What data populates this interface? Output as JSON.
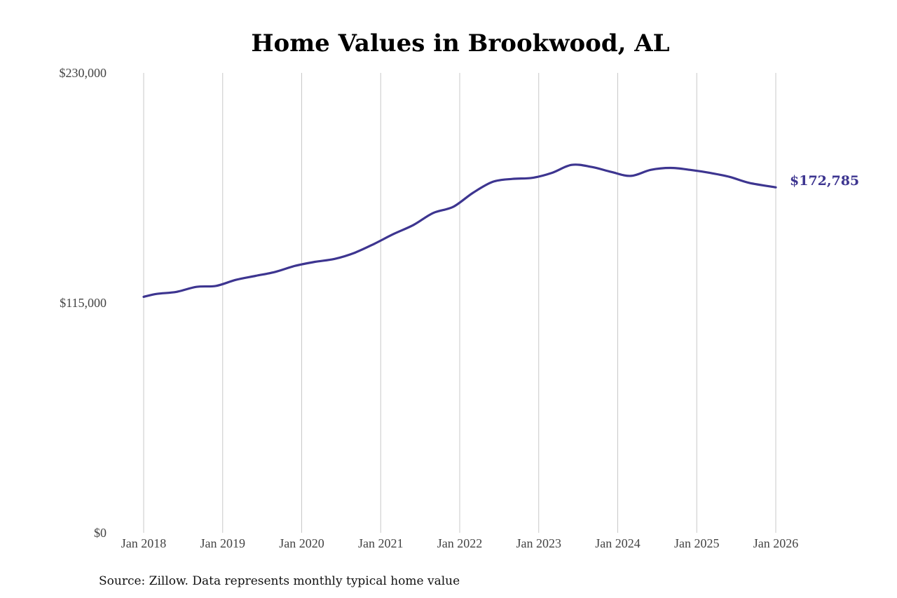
{
  "chart_data": {
    "type": "line",
    "title": "Home Values in Brookwood, AL",
    "source": "Source: Zillow. Data represents monthly typical home value",
    "ylim": [
      0,
      230000
    ],
    "y_ticks": [
      {
        "value": 0,
        "label": "$0"
      },
      {
        "value": 115000,
        "label": "$115,000"
      },
      {
        "value": 230000,
        "label": "$230,000"
      }
    ],
    "x_ticks": [
      {
        "value": "2018-01",
        "label": "Jan 2018"
      },
      {
        "value": "2019-01",
        "label": "Jan 2019"
      },
      {
        "value": "2020-01",
        "label": "Jan 2020"
      },
      {
        "value": "2021-01",
        "label": "Jan 2021"
      },
      {
        "value": "2022-01",
        "label": "Jan 2022"
      },
      {
        "value": "2023-01",
        "label": "Jan 2023"
      },
      {
        "value": "2024-01",
        "label": "Jan 2024"
      },
      {
        "value": "2025-01",
        "label": "Jan 2025"
      },
      {
        "value": "2026-01",
        "label": "Jan 2026"
      }
    ],
    "grid": "vertical",
    "line_color": "#3d3590",
    "end_label": "$172,785",
    "series": [
      {
        "points": [
          {
            "x": "2018-01",
            "y": 118000
          },
          {
            "x": "2018-03",
            "y": 119500
          },
          {
            "x": "2018-06",
            "y": 120500
          },
          {
            "x": "2018-09",
            "y": 123000
          },
          {
            "x": "2018-12",
            "y": 123500
          },
          {
            "x": "2019-03",
            "y": 126500
          },
          {
            "x": "2019-06",
            "y": 128500
          },
          {
            "x": "2019-09",
            "y": 130500
          },
          {
            "x": "2019-12",
            "y": 133500
          },
          {
            "x": "2020-03",
            "y": 135500
          },
          {
            "x": "2020-06",
            "y": 137000
          },
          {
            "x": "2020-09",
            "y": 140000
          },
          {
            "x": "2020-12",
            "y": 144500
          },
          {
            "x": "2021-03",
            "y": 149500
          },
          {
            "x": "2021-06",
            "y": 154000
          },
          {
            "x": "2021-09",
            "y": 160000
          },
          {
            "x": "2021-12",
            "y": 163000
          },
          {
            "x": "2022-03",
            "y": 170000
          },
          {
            "x": "2022-06",
            "y": 175500
          },
          {
            "x": "2022-09",
            "y": 177000
          },
          {
            "x": "2022-12",
            "y": 177500
          },
          {
            "x": "2023-03",
            "y": 180000
          },
          {
            "x": "2023-06",
            "y": 184000
          },
          {
            "x": "2023-09",
            "y": 183000
          },
          {
            "x": "2023-12",
            "y": 180500
          },
          {
            "x": "2024-03",
            "y": 178500
          },
          {
            "x": "2024-06",
            "y": 181500
          },
          {
            "x": "2024-09",
            "y": 182500
          },
          {
            "x": "2024-12",
            "y": 181500
          },
          {
            "x": "2025-03",
            "y": 180000
          },
          {
            "x": "2025-06",
            "y": 178000
          },
          {
            "x": "2025-09",
            "y": 175000
          },
          {
            "x": "2026-01",
            "y": 172785
          }
        ]
      }
    ]
  }
}
